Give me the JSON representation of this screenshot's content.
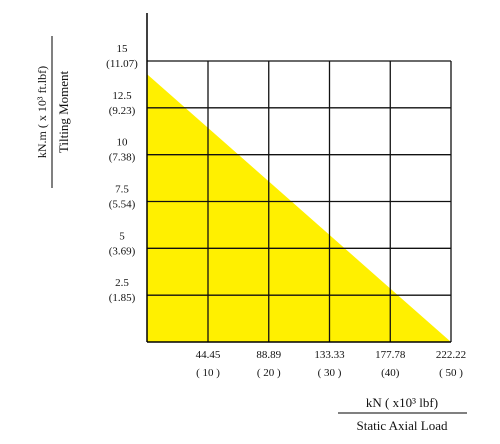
{
  "chart_data": {
    "type": "area",
    "xlabel_line1": "kN ( x10³ lbf)",
    "xlabel_line2": "Static Axial Load",
    "ylabel_line1": "kN.m ( x 10³ ft.lbf)",
    "ylabel_line2": "Tilting Moment",
    "xlim": [
      0,
      222.22
    ],
    "ylim": [
      0,
      15
    ],
    "x_ticks": [
      {
        "value": 44.45,
        "label": "44.45",
        "sublabel": "( 10 )"
      },
      {
        "value": 88.89,
        "label": "88.89",
        "sublabel": "( 20 )"
      },
      {
        "value": 133.33,
        "label": "133.33",
        "sublabel": "( 30 )"
      },
      {
        "value": 177.78,
        "label": "177.78",
        "sublabel": "(40)"
      },
      {
        "value": 222.22,
        "label": "222.22",
        "sublabel": "( 50 )"
      }
    ],
    "y_ticks": [
      {
        "value": 2.5,
        "label": "2.5",
        "sublabel": "(1.85)"
      },
      {
        "value": 5,
        "label": "5",
        "sublabel": "(3.69)"
      },
      {
        "value": 7.5,
        "label": "7.5",
        "sublabel": "(5.54)"
      },
      {
        "value": 10,
        "label": "10",
        "sublabel": "(7.38)"
      },
      {
        "value": 12.5,
        "label": "12.5",
        "sublabel": "(9.23)"
      },
      {
        "value": 15,
        "label": "15",
        "sublabel": "(11.07)"
      }
    ],
    "grid": true,
    "series": [
      {
        "color": "#fff000",
        "x": [
          0,
          0,
          222.22,
          0
        ],
        "y": [
          0,
          14.3,
          0,
          0
        ]
      }
    ]
  }
}
